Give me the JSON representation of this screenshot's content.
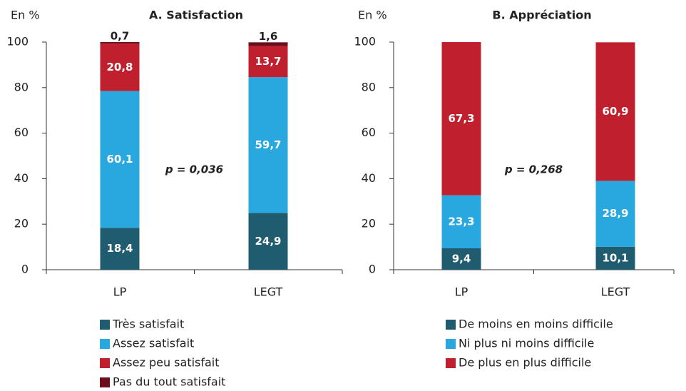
{
  "chart_data": [
    {
      "type": "bar",
      "stacked": true,
      "title": "A. Satisfaction",
      "y_label": "En %",
      "annotation": "p = 0,036",
      "categories": [
        "LP",
        "LEGT"
      ],
      "ylim": [
        0,
        100
      ],
      "yticks": [
        0,
        20,
        40,
        60,
        80,
        100
      ],
      "series": [
        {
          "name": "Très satisfait",
          "color": "#1f5c70",
          "values": [
            18.4,
            24.9
          ],
          "value_labels": [
            "18,4",
            "24,9"
          ]
        },
        {
          "name": "Assez satisfait",
          "color": "#29a8e0",
          "values": [
            60.1,
            59.7
          ],
          "value_labels": [
            "60,1",
            "59,7"
          ]
        },
        {
          "name": "Assez peu satisfait",
          "color": "#c0202e",
          "values": [
            20.8,
            13.7
          ],
          "value_labels": [
            "20,8",
            "13,7"
          ]
        },
        {
          "name": "Pas du tout satisfait",
          "color": "#6b0f1a",
          "values": [
            0.7,
            1.6
          ],
          "value_labels": [
            "0,7",
            "1,6"
          ]
        }
      ]
    },
    {
      "type": "bar",
      "stacked": true,
      "title": "B. Appréciation",
      "y_label": "En %",
      "annotation": "p = 0,268",
      "categories": [
        "LP",
        "LEGT"
      ],
      "ylim": [
        0,
        100
      ],
      "yticks": [
        0,
        20,
        40,
        60,
        80,
        100
      ],
      "series": [
        {
          "name": "De moins en moins difficile",
          "color": "#1f5c70",
          "values": [
            9.4,
            10.1
          ],
          "value_labels": [
            "9,4",
            "10,1"
          ]
        },
        {
          "name": "Ni plus ni moins difficile",
          "color": "#29a8e0",
          "values": [
            23.3,
            28.9
          ],
          "value_labels": [
            "23,3",
            "28,9"
          ]
        },
        {
          "name": "De plus en plus difficile",
          "color": "#c0202e",
          "values": [
            67.3,
            60.9
          ],
          "value_labels": [
            "67,3",
            "60,9"
          ]
        }
      ]
    }
  ]
}
